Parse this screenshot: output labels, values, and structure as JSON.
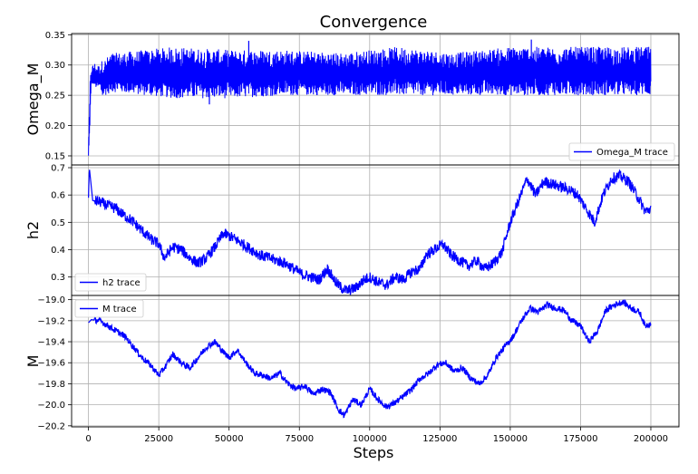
{
  "chart_data": {
    "type": "line",
    "title": "Convergence",
    "xlabel": "Steps",
    "xlim": [
      -6000,
      210000
    ],
    "xticks": [
      0,
      25000,
      50000,
      75000,
      100000,
      125000,
      150000,
      175000,
      200000
    ],
    "grid": true,
    "panels": [
      {
        "ylabel": "Omega_M",
        "ylim": [
          0.135,
          0.352
        ],
        "yticks": [
          0.15,
          0.2,
          0.25,
          0.3,
          0.35
        ],
        "ytick_labels": [
          "0.15",
          "0.20",
          "0.25",
          "0.30",
          "0.35"
        ],
        "legend": "lower right",
        "color": "#0000ff",
        "series": [
          {
            "name": "Omega_M trace",
            "display": "band",
            "x": [
              0,
              300,
              600,
              1000,
              1500,
              2000,
              3000,
              4000,
              5000,
              6000,
              8000,
              10000,
              30000,
              50000,
              70000,
              90000,
              110000,
              130000,
              150000,
              170000,
              190000,
              200000
            ],
            "low": [
              0.14,
              0.17,
              0.21,
              0.26,
              0.27,
              0.265,
              0.26,
              0.26,
              0.245,
              0.25,
              0.255,
              0.255,
              0.245,
              0.245,
              0.25,
              0.25,
              0.25,
              0.25,
              0.25,
              0.25,
              0.25,
              0.25
            ],
            "high": [
              0.185,
              0.22,
              0.28,
              0.3,
              0.3,
              0.305,
              0.3,
              0.3,
              0.31,
              0.31,
              0.32,
              0.32,
              0.33,
              0.325,
              0.325,
              0.32,
              0.33,
              0.32,
              0.33,
              0.33,
              0.33,
              0.33
            ],
            "spikes": [
              {
                "x": 57000,
                "y": 0.34
              },
              {
                "x": 157500,
                "y": 0.342
              },
              {
                "x": 43000,
                "y": 0.235
              }
            ]
          }
        ]
      },
      {
        "ylabel": "h2",
        "ylim": [
          0.2325,
          0.71
        ],
        "yticks": [
          0.3,
          0.4,
          0.5,
          0.6,
          0.7
        ],
        "ytick_labels": [
          "0.3",
          "0.4",
          "0.5",
          "0.6",
          "0.7"
        ],
        "legend": "lower left",
        "color": "#0000ff",
        "series": [
          {
            "name": "h2 trace",
            "display": "line",
            "x": [
              0,
              300,
              1500,
              4000,
              7000,
              10000,
              12000,
              15000,
              18000,
              20000,
              22000,
              25000,
              27000,
              30000,
              33000,
              36000,
              39000,
              42000,
              45000,
              48000,
              50000,
              52000,
              55000,
              58000,
              61000,
              64000,
              67000,
              70000,
              73000,
              76000,
              79000,
              82000,
              85000,
              88000,
              90000,
              92000,
              95000,
              98000,
              100000,
              103000,
              106000,
              109000,
              112000,
              115000,
              118000,
              120000,
              123000,
              126000,
              129000,
              132000,
              135000,
              138000,
              141000,
              144000,
              147000,
              150000,
              153000,
              156000,
              159000,
              162000,
              165000,
              168000,
              171000,
              174000,
              177000,
              180000,
              183000,
              186000,
              189000,
              192000,
              195000,
              198000,
              200000
            ],
            "y": [
              0.59,
              0.7,
              0.58,
              0.575,
              0.56,
              0.55,
              0.53,
              0.51,
              0.48,
              0.46,
              0.44,
              0.42,
              0.37,
              0.41,
              0.4,
              0.37,
              0.35,
              0.37,
              0.41,
              0.46,
              0.45,
              0.44,
              0.42,
              0.4,
              0.38,
              0.37,
              0.36,
              0.35,
              0.33,
              0.31,
              0.3,
              0.29,
              0.33,
              0.28,
              0.26,
              0.25,
              0.26,
              0.29,
              0.3,
              0.28,
              0.27,
              0.3,
              0.29,
              0.32,
              0.33,
              0.38,
              0.4,
              0.42,
              0.38,
              0.36,
              0.34,
              0.36,
              0.33,
              0.35,
              0.39,
              0.5,
              0.58,
              0.66,
              0.6,
              0.65,
              0.64,
              0.63,
              0.62,
              0.6,
              0.55,
              0.5,
              0.6,
              0.66,
              0.67,
              0.65,
              0.6,
              0.54,
              0.55
            ],
            "jitter": 0.02
          }
        ]
      },
      {
        "ylabel": "M",
        "ylim": [
          -20.21,
          -18.96
        ],
        "yticks": [
          -20.2,
          -20.0,
          -19.8,
          -19.6,
          -19.4,
          -19.2,
          -19.0
        ],
        "ytick_labels": [
          "−20.2",
          "−20.0",
          "−19.8",
          "−19.6",
          "−19.4",
          "−19.2",
          "−19.0"
        ],
        "legend": "upper left",
        "color": "#0000ff",
        "series": [
          {
            "name": "M trace",
            "display": "line",
            "x": [
              0,
              1000,
              4000,
              7000,
              10000,
              13000,
              16000,
              19000,
              22000,
              25000,
              27000,
              30000,
              33000,
              36000,
              39000,
              42000,
              45000,
              48000,
              50000,
              53000,
              56000,
              59000,
              62000,
              65000,
              68000,
              71000,
              74000,
              77000,
              80000,
              83000,
              86000,
              89000,
              91000,
              94000,
              97000,
              100000,
              103000,
              106000,
              109000,
              112000,
              115000,
              118000,
              121000,
              124000,
              127000,
              130000,
              133000,
              136000,
              139000,
              142000,
              145000,
              148000,
              151000,
              154000,
              157000,
              160000,
              163000,
              166000,
              169000,
              172000,
              175000,
              178000,
              181000,
              184000,
              187000,
              190000,
              193000,
              196000,
              198000,
              200000
            ],
            "y": [
              -19.22,
              -19.19,
              -19.2,
              -19.25,
              -19.3,
              -19.35,
              -19.45,
              -19.55,
              -19.62,
              -19.72,
              -19.65,
              -19.52,
              -19.6,
              -19.65,
              -19.55,
              -19.45,
              -19.4,
              -19.5,
              -19.55,
              -19.48,
              -19.6,
              -19.7,
              -19.72,
              -19.75,
              -19.7,
              -19.8,
              -19.85,
              -19.82,
              -19.9,
              -19.85,
              -19.88,
              -20.05,
              -20.1,
              -19.95,
              -20.0,
              -19.85,
              -19.95,
              -20.02,
              -19.98,
              -19.92,
              -19.85,
              -19.75,
              -19.7,
              -19.62,
              -19.6,
              -19.68,
              -19.65,
              -19.75,
              -19.8,
              -19.72,
              -19.55,
              -19.45,
              -19.35,
              -19.2,
              -19.08,
              -19.12,
              -19.05,
              -19.08,
              -19.1,
              -19.2,
              -19.25,
              -19.4,
              -19.3,
              -19.1,
              -19.05,
              -19.02,
              -19.08,
              -19.12,
              -19.25,
              -19.22
            ],
            "jitter": 0.03
          }
        ]
      }
    ]
  }
}
